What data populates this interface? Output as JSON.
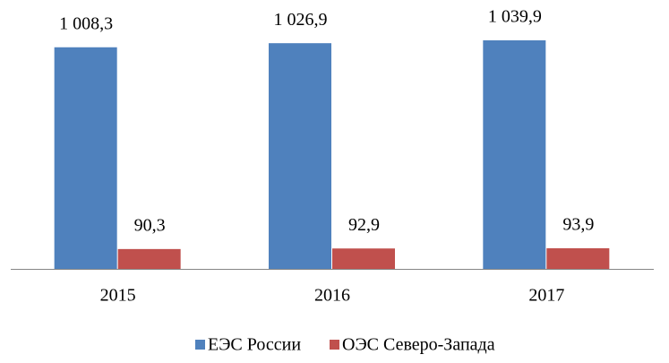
{
  "chart_data": {
    "type": "bar",
    "categories": [
      "2015",
      "2016",
      "2017"
    ],
    "series": [
      {
        "name": "ЕЭС России",
        "color": "#4f81bd",
        "values": [
          1008.3,
          1026.9,
          1039.9
        ],
        "value_labels": [
          "1 008,3",
          "1 026,9",
          "1 039,9"
        ]
      },
      {
        "name": "ОЭС Северо-Запада",
        "color": "#c0504d",
        "values": [
          90.3,
          92.9,
          93.9
        ],
        "value_labels": [
          "90,3",
          "92,9",
          "93,9"
        ]
      }
    ],
    "legend": "bottom"
  }
}
